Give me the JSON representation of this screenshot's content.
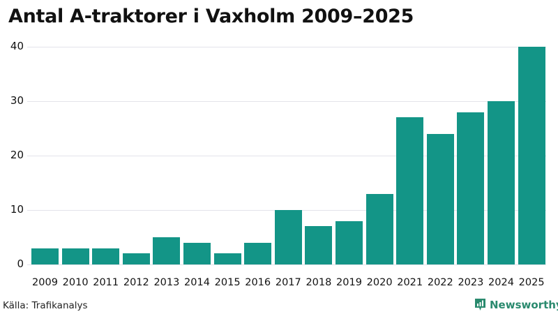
{
  "header": {
    "title": "Antal A-traktorer i Vaxholm 2009–2025"
  },
  "footer": {
    "source": "Källa: Trafikanalys",
    "brand": "Newsworthy",
    "brand_color": "#2a8a6e"
  },
  "colors": {
    "bar": "#139587",
    "grid": "#e3e3ea"
  },
  "chart_data": {
    "type": "bar",
    "title": "Antal A-traktorer i Vaxholm 2009–2025",
    "xlabel": "",
    "ylabel": "",
    "categories": [
      "2009",
      "2010",
      "2011",
      "2012",
      "2013",
      "2014",
      "2015",
      "2016",
      "2017",
      "2018",
      "2019",
      "2020",
      "2021",
      "2022",
      "2023",
      "2024",
      "2025"
    ],
    "values": [
      3,
      3,
      3,
      2,
      5,
      4,
      2,
      4,
      10,
      7,
      8,
      13,
      27,
      24,
      28,
      30,
      40
    ],
    "ylim": [
      0,
      40
    ],
    "yticks": [
      0,
      10,
      20,
      30,
      40
    ],
    "grid": true,
    "legend": null,
    "source": "Källa: Trafikanalys"
  }
}
